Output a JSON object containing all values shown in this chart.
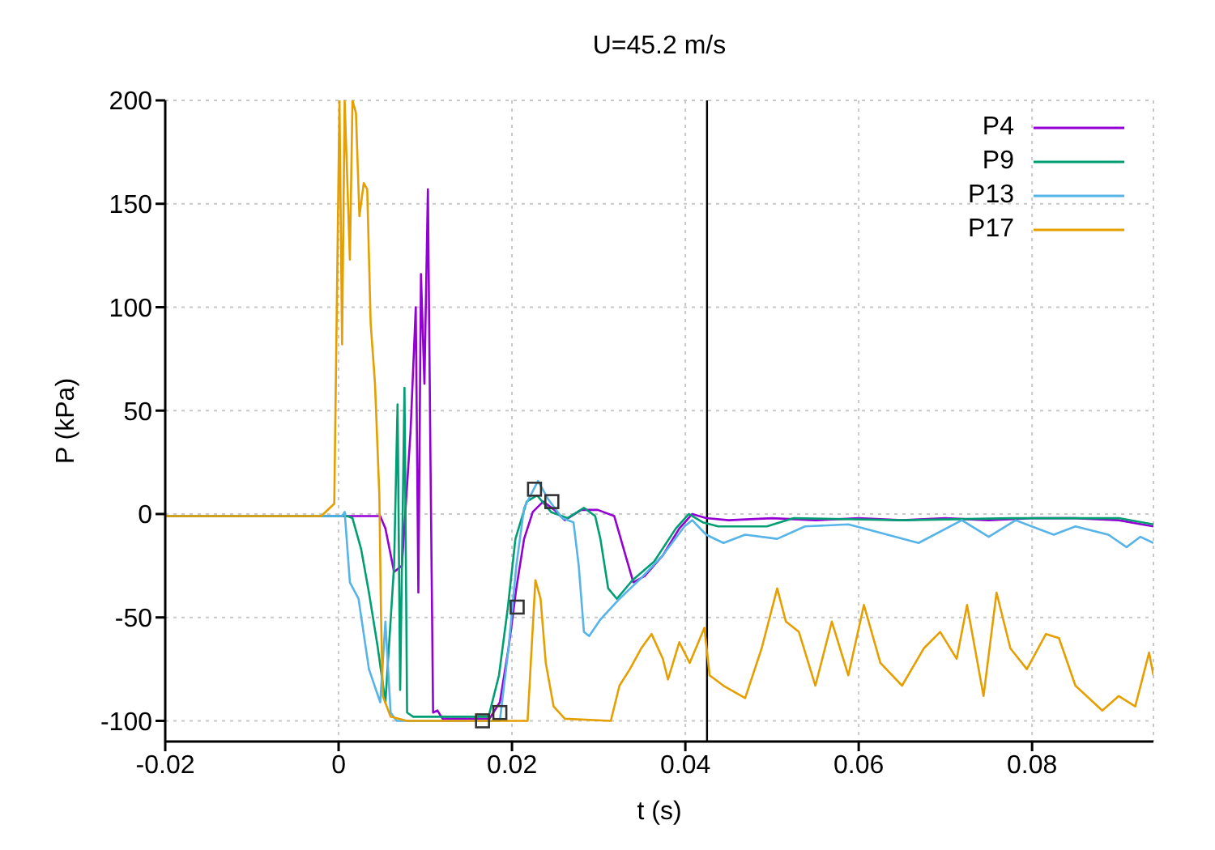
{
  "chart_data": {
    "type": "line",
    "title": "U=45.2 m/s",
    "xlabel": "t (s)",
    "ylabel": "P (kPa)",
    "xlim": [
      -0.02,
      0.094
    ],
    "xticks": [
      -0.02,
      0,
      0.02,
      0.04,
      0.06,
      0.08
    ],
    "ylim": [
      -110,
      200
    ],
    "yticks": [
      -100,
      -50,
      0,
      50,
      100,
      150,
      200
    ],
    "grid": true,
    "legend": "top right",
    "marker": "none",
    "line_style": "solid",
    "ref_lines": [
      {
        "axis": "x",
        "value": 0.0425,
        "color": "#000000"
      }
    ],
    "series": [
      {
        "name": "P4",
        "color": "#9400d3",
        "x": [
          -0.02,
          0.0048,
          0.0054,
          0.0064,
          0.0073,
          0.0083,
          0.0089,
          0.0092,
          0.0095,
          0.0099,
          0.0103,
          0.0106,
          0.0109,
          0.0114,
          0.012,
          0.0142,
          0.0174,
          0.0186,
          0.0196,
          0.0205,
          0.0214,
          0.0224,
          0.0236,
          0.0249,
          0.0261,
          0.028,
          0.0299,
          0.0318,
          0.0331,
          0.034,
          0.0353,
          0.0374,
          0.0393,
          0.0408,
          0.0424,
          0.045,
          0.05,
          0.055,
          0.06,
          0.065,
          0.07,
          0.075,
          0.08,
          0.085,
          0.09,
          0.094
        ],
        "values": [
          -1,
          -1,
          -7,
          -28,
          -25,
          40,
          100,
          -38,
          116,
          63,
          157,
          25,
          -96,
          -95,
          -99,
          -99,
          -99,
          -91,
          -65,
          -36,
          -12,
          1,
          6,
          2,
          -3,
          2,
          2,
          -1,
          -20,
          -33,
          -30,
          -20,
          -7,
          0,
          -2,
          -3,
          -2,
          -3,
          -2,
          -3,
          -2,
          -3,
          -2,
          -2,
          -3,
          -6
        ]
      },
      {
        "name": "P9",
        "color": "#009e73",
        "x": [
          -0.02,
          0.001,
          0.0016,
          0.0026,
          0.0035,
          0.0045,
          0.0054,
          0.0064,
          0.0068,
          0.0071,
          0.0076,
          0.0079,
          0.0086,
          0.0173,
          0.0185,
          0.0195,
          0.0204,
          0.0217,
          0.0229,
          0.0245,
          0.0264,
          0.0283,
          0.0296,
          0.0302,
          0.0311,
          0.0321,
          0.0339,
          0.0364,
          0.0389,
          0.0404,
          0.042,
          0.0438,
          0.0494,
          0.0525,
          0.065,
          0.0775,
          0.09,
          0.094
        ],
        "values": [
          -1,
          -1,
          -2,
          -17,
          -38,
          -64,
          -91,
          -25,
          53,
          -85,
          61,
          -96,
          -98,
          -98,
          -78,
          -46,
          -12,
          6,
          9,
          1,
          -2,
          3,
          -1,
          -12,
          -36,
          -41,
          -32,
          -23,
          -7,
          0,
          -4,
          -6,
          -6,
          -2,
          -3,
          -2,
          -2,
          -5
        ]
      },
      {
        "name": "P13",
        "color": "#56b4e9",
        "x": [
          -0.02,
          0.0004,
          0.0007,
          0.0013,
          0.0023,
          0.0035,
          0.0048,
          0.0054,
          0.006,
          0.0067,
          0.0186,
          0.0196,
          0.0205,
          0.0214,
          0.023,
          0.0242,
          0.0258,
          0.0271,
          0.0277,
          0.0283,
          0.0289,
          0.0302,
          0.0324,
          0.0349,
          0.0374,
          0.0399,
          0.0408,
          0.0424,
          0.0444,
          0.0469,
          0.0506,
          0.0538,
          0.0588,
          0.0606,
          0.0669,
          0.0719,
          0.075,
          0.0781,
          0.0825,
          0.085,
          0.0888,
          0.0909,
          0.0925,
          0.094
        ],
        "values": [
          -1,
          -1,
          1,
          -33,
          -41,
          -75,
          -91,
          -52,
          -96,
          -100,
          -100,
          -65,
          -25,
          3,
          16,
          7,
          -2,
          -4,
          -25,
          -57,
          -59,
          -51,
          -41,
          -31,
          -20,
          -6,
          -3,
          -10,
          -14,
          -10,
          -12,
          -6,
          -5,
          -7,
          -14,
          -3,
          -11,
          -3,
          -10,
          -6,
          -10,
          -16,
          -11,
          -14
        ]
      },
      {
        "name": "P17",
        "color": "#e69f00",
        "x": [
          -0.02,
          -0.002,
          -0.0005,
          0.0001,
          0.0004,
          0.0007,
          0.0013,
          0.0016,
          0.002,
          0.0024,
          0.0029,
          0.0033,
          0.0037,
          0.0042,
          0.0047,
          0.0049,
          0.0051,
          0.006,
          0.0079,
          0.0218,
          0.0227,
          0.0233,
          0.0239,
          0.0248,
          0.0261,
          0.0314,
          0.0324,
          0.0336,
          0.0349,
          0.0361,
          0.0374,
          0.038,
          0.0393,
          0.0405,
          0.0422,
          0.0428,
          0.0444,
          0.0469,
          0.0488,
          0.0506,
          0.0516,
          0.0531,
          0.055,
          0.0569,
          0.0588,
          0.0606,
          0.0625,
          0.065,
          0.0675,
          0.0694,
          0.0713,
          0.0725,
          0.0744,
          0.0759,
          0.0775,
          0.0794,
          0.0816,
          0.0831,
          0.085,
          0.0881,
          0.09,
          0.0919,
          0.0935,
          0.094
        ],
        "values": [
          -1,
          -1,
          5,
          200,
          82,
          200,
          123,
          200,
          194,
          144,
          160,
          157,
          92,
          63,
          9,
          -51,
          -88,
          -98,
          -100,
          -100,
          -32,
          -41,
          -72,
          -93,
          -99,
          -100,
          -83,
          -75,
          -65,
          -58,
          -70,
          -80,
          -62,
          -72,
          -55,
          -78,
          -83,
          -89,
          -65,
          -36,
          -52,
          -57,
          -83,
          -52,
          -78,
          -44,
          -72,
          -83,
          -65,
          -57,
          -70,
          -44,
          -88,
          -38,
          -65,
          -75,
          -58,
          -60,
          -83,
          -95,
          -88,
          -93,
          -67,
          -78
        ]
      },
      {
        "type": "scatter",
        "marker": "square",
        "color": "#333333",
        "x": [
          0.0166,
          0.0186,
          0.0206,
          0.0226,
          0.0246
        ],
        "values": [
          -100,
          -96,
          -45,
          12,
          6
        ]
      }
    ]
  }
}
